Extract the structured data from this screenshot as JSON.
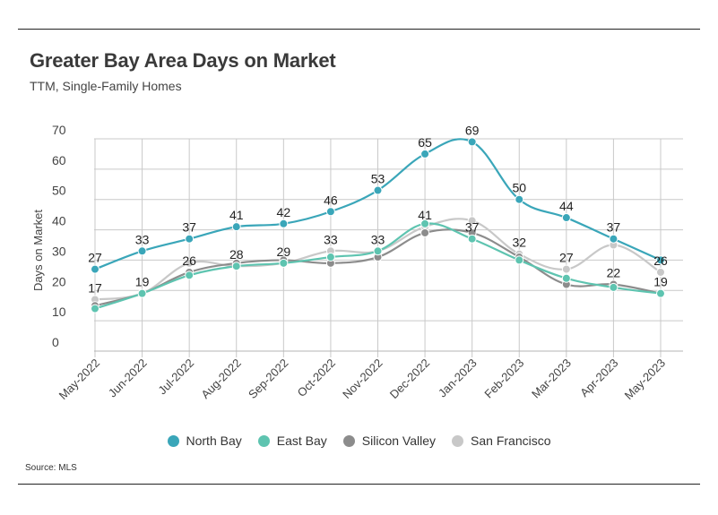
{
  "title": "Greater Bay Area Days on Market",
  "subtitle": "TTM, Single-Family Homes",
  "source": "Source:  MLS",
  "chart_data": {
    "type": "line",
    "title": "Greater Bay Area Days on Market",
    "subtitle": "TTM, Single-Family Homes",
    "xlabel": "",
    "ylabel": "Days on Market",
    "ylim": [
      0,
      70
    ],
    "yticks": [
      "0",
      "10",
      "20",
      "30",
      "40",
      "50",
      "60",
      "70"
    ],
    "grid": true,
    "legend_position": "bottom",
    "categories": [
      "May-2022",
      "Jun-2022",
      "Jul-2022",
      "Aug-2022",
      "Sep-2022",
      "Oct-2022",
      "Nov-2022",
      "Dec-2022",
      "Jan-2023",
      "Feb-2023",
      "Mar-2023",
      "Apr-2023",
      "May-2023"
    ],
    "series": [
      {
        "name": "North Bay",
        "color": "#3aa6b9",
        "values": [
          27,
          33,
          37,
          41,
          42,
          46,
          53,
          65,
          69,
          50,
          44,
          37,
          30
        ],
        "labels": [
          "27",
          "33",
          "37",
          "41",
          "42",
          "46",
          "53",
          "65",
          "69",
          "50",
          "44",
          "37",
          ""
        ]
      },
      {
        "name": "East Bay",
        "color": "#5ec4b0",
        "values": [
          14,
          19,
          25,
          28,
          29,
          31,
          33,
          42,
          37,
          30,
          24,
          21,
          19
        ],
        "labels": [
          "",
          "",
          "",
          "",
          "",
          "",
          "",
          "",
          "37",
          "",
          "",
          "",
          ""
        ]
      },
      {
        "name": "Silicon Valley",
        "color": "#8c8c8c",
        "values": [
          15,
          19,
          26,
          29,
          30,
          29,
          31,
          39,
          39,
          31,
          22,
          22,
          19
        ],
        "labels": [
          "",
          "19",
          "26",
          "",
          "",
          "",
          "",
          "",
          "",
          "",
          "",
          "22",
          "19"
        ]
      },
      {
        "name": "San Francisco",
        "color": "#c8c8c8",
        "values": [
          17,
          19,
          29,
          28,
          29,
          33,
          33,
          41,
          43,
          32,
          27,
          35,
          26
        ],
        "labels": [
          "17",
          "",
          "",
          "28",
          "29",
          "33",
          "33",
          "41",
          "",
          "32",
          "27",
          "",
          "26"
        ]
      }
    ]
  }
}
